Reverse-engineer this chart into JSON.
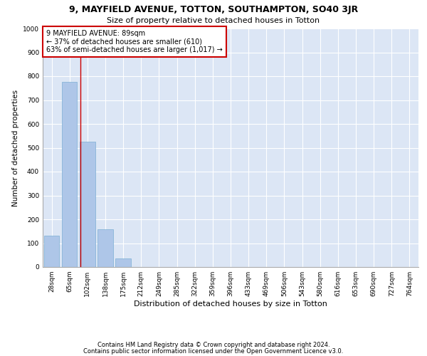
{
  "title1": "9, MAYFIELD AVENUE, TOTTON, SOUTHAMPTON, SO40 3JR",
  "title2": "Size of property relative to detached houses in Totton",
  "xlabel": "Distribution of detached houses by size in Totton",
  "ylabel": "Number of detached properties",
  "footnote1": "Contains HM Land Registry data © Crown copyright and database right 2024.",
  "footnote2": "Contains public sector information licensed under the Open Government Licence v3.0.",
  "bar_labels": [
    "28sqm",
    "65sqm",
    "102sqm",
    "138sqm",
    "175sqm",
    "212sqm",
    "249sqm",
    "285sqm",
    "322sqm",
    "359sqm",
    "396sqm",
    "433sqm",
    "469sqm",
    "506sqm",
    "543sqm",
    "580sqm",
    "616sqm",
    "653sqm",
    "690sqm",
    "727sqm",
    "764sqm"
  ],
  "bar_values": [
    130,
    775,
    525,
    158,
    35,
    0,
    0,
    0,
    0,
    0,
    0,
    0,
    0,
    0,
    0,
    0,
    0,
    0,
    0,
    0,
    0
  ],
  "bar_color": "#aec6e8",
  "bar_edge_color": "#7bafd4",
  "background_color": "#dce6f5",
  "grid_color": "#ffffff",
  "vline_x": 1.62,
  "vline_color": "#cc0000",
  "annotation_text": "9 MAYFIELD AVENUE: 89sqm\n← 37% of detached houses are smaller (610)\n63% of semi-detached houses are larger (1,017) →",
  "annotation_box_color": "#ffffff",
  "annotation_box_edge_color": "#cc0000",
  "ylim": [
    0,
    1000
  ],
  "yticks": [
    0,
    100,
    200,
    300,
    400,
    500,
    600,
    700,
    800,
    900,
    1000
  ],
  "title1_fontsize": 9,
  "title2_fontsize": 8,
  "xlabel_fontsize": 8,
  "ylabel_fontsize": 7.5,
  "annotation_fontsize": 7,
  "tick_fontsize": 6.5,
  "footnote_fontsize": 6
}
